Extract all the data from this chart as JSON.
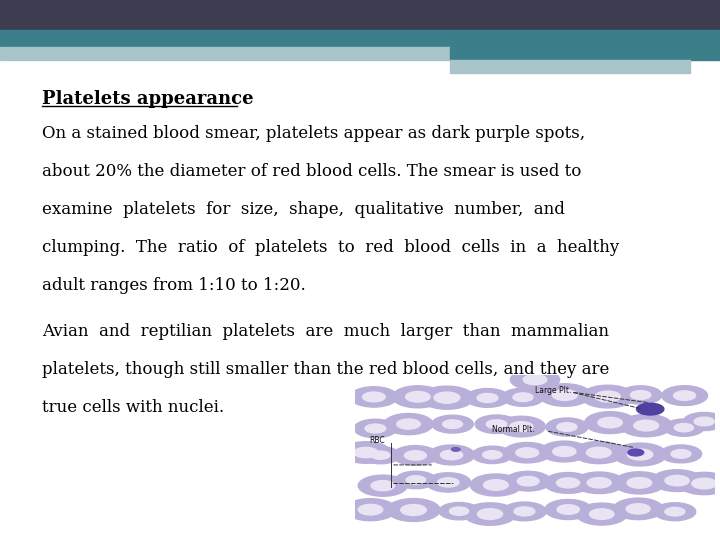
{
  "title": "Platelets appearance",
  "para1_lines": [
    "On a stained blood smear, platelets appear as dark purple spots,",
    "about 20% the diameter of red blood cells. The smear is used to",
    "examine  platelets  for  size,  shape,  qualitative  number,  and",
    "clumping.  The  ratio  of  platelets  to  red  blood  cells  in  a  healthy",
    "adult ranges from 1:10 to 1:20."
  ],
  "para2_lines": [
    "Avian  and  reptilian  platelets  are  much  larger  than  mammalian",
    "platelets, though still smaller than the red blood cells, and they are",
    "true cells with nuclei."
  ],
  "bg_color": "#ffffff",
  "header_dark": "#3d3d52",
  "header_teal": "#3a7f8a",
  "header_light": "#a8c4c8",
  "title_font_size": 13,
  "body_font_size": 12,
  "text_color": "#000000",
  "font_family": "DejaVu Serif",
  "fig_width": 7.2,
  "fig_height": 5.4,
  "dpi": 100
}
